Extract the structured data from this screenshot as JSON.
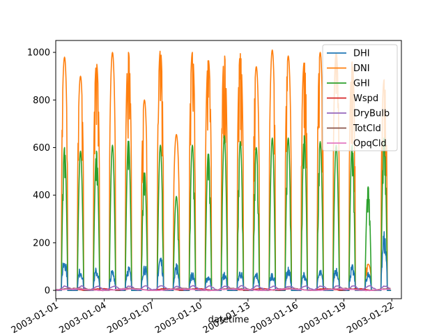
{
  "chart_data": {
    "type": "line",
    "xlabel": "datetime",
    "ylabel": "",
    "x_range": [
      "2003-01-01",
      "2003-01-22"
    ],
    "ylim": [
      -35,
      1050
    ],
    "x_ticks": [
      "2003-01-01",
      "2003-01-04",
      "2003-01-07",
      "2003-01-10",
      "2003-01-13",
      "2003-01-16",
      "2003-01-19",
      "2003-01-22"
    ],
    "y_ticks": [
      0,
      200,
      400,
      600,
      800,
      1000
    ],
    "grid": false,
    "legend": "top-right",
    "daily_peaks": {
      "days": [
        "2003-01-01",
        "2003-01-02",
        "2003-01-03",
        "2003-01-04",
        "2003-01-05",
        "2003-01-06",
        "2003-01-07",
        "2003-01-08",
        "2003-01-09",
        "2003-01-10",
        "2003-01-11",
        "2003-01-12",
        "2003-01-13",
        "2003-01-14",
        "2003-01-15",
        "2003-01-16",
        "2003-01-17",
        "2003-01-18",
        "2003-01-19",
        "2003-01-20",
        "2003-01-21"
      ],
      "DHI": [
        155,
        100,
        100,
        90,
        110,
        120,
        160,
        120,
        80,
        70,
        80,
        90,
        80,
        80,
        100,
        80,
        90,
        110,
        110,
        80,
        260
      ],
      "DNI": [
        980,
        900,
        955,
        1000,
        1000,
        800,
        1010,
        655,
        1000,
        970,
        990,
        995,
        940,
        1010,
        985,
        960,
        1000,
        1000,
        960,
        110,
        885
      ],
      "GHI": [
        600,
        585,
        585,
        610,
        635,
        500,
        610,
        395,
        610,
        580,
        650,
        625,
        600,
        640,
        640,
        650,
        625,
        610,
        610,
        435,
        640
      ]
    },
    "series": [
      {
        "name": "DHI",
        "color": "#1f77b4",
        "range": [
          0,
          260
        ]
      },
      {
        "name": "DNI",
        "color": "#ff7f0e",
        "range": [
          0,
          1010
        ]
      },
      {
        "name": "GHI",
        "color": "#2ca02c",
        "range": [
          0,
          650
        ]
      },
      {
        "name": "Wspd",
        "color": "#d62728",
        "range": [
          0,
          12
        ]
      },
      {
        "name": "DryBulb",
        "color": "#9467bd",
        "range": [
          -5,
          22
        ]
      },
      {
        "name": "TotCld",
        "color": "#8c564b",
        "range": [
          0,
          10
        ]
      },
      {
        "name": "OpqCld",
        "color": "#e377c2",
        "range": [
          0,
          10
        ]
      }
    ]
  }
}
